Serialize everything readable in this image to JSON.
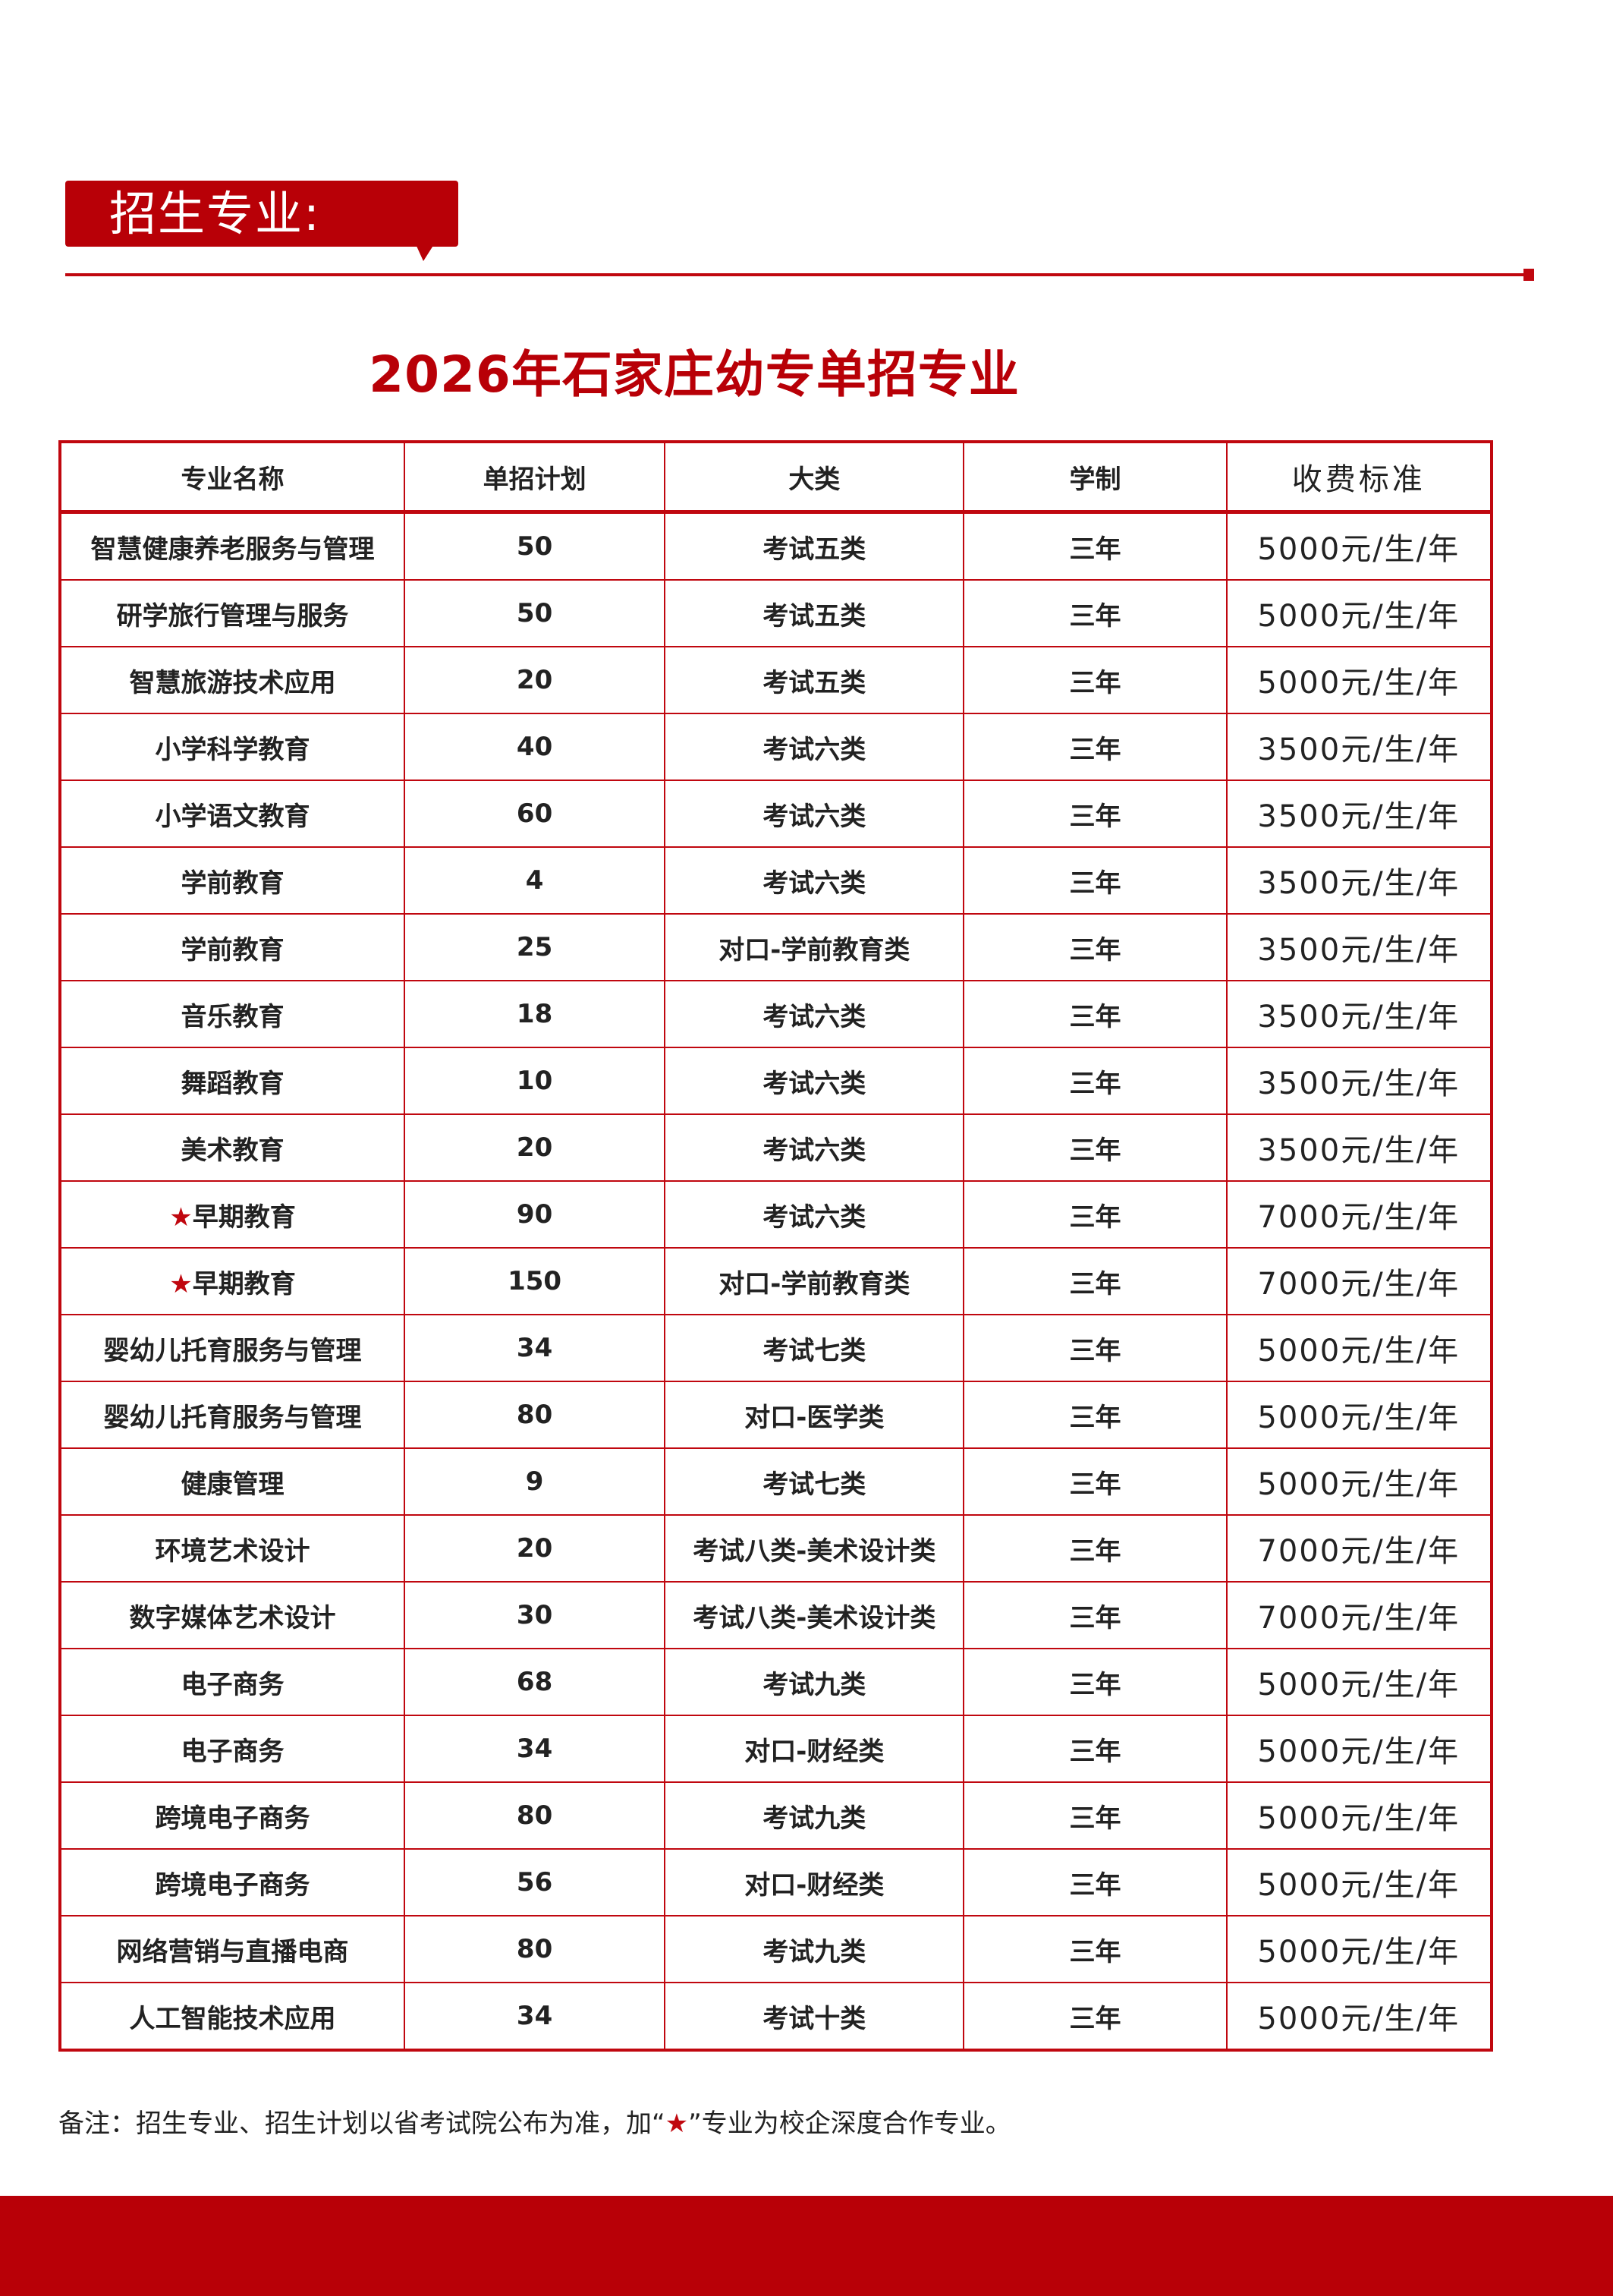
{
  "section_tag": "招生专业:",
  "title": "2026年石家庄幼专单招专业",
  "colors": {
    "accent": "#b80007",
    "border": "#c0070f"
  },
  "table": {
    "headers": [
      "专业名称",
      "单招计划",
      "大类",
      "学制",
      "收费标准"
    ],
    "rows": [
      {
        "name": "智慧健康养老服务与管理",
        "star": false,
        "plan": "50",
        "category": "考试五类",
        "years": "三年",
        "fee": "5000元/生/年"
      },
      {
        "name": "研学旅行管理与服务",
        "star": false,
        "plan": "50",
        "category": "考试五类",
        "years": "三年",
        "fee": "5000元/生/年"
      },
      {
        "name": "智慧旅游技术应用",
        "star": false,
        "plan": "20",
        "category": "考试五类",
        "years": "三年",
        "fee": "5000元/生/年"
      },
      {
        "name": "小学科学教育",
        "star": false,
        "plan": "40",
        "category": "考试六类",
        "years": "三年",
        "fee": "3500元/生/年"
      },
      {
        "name": "小学语文教育",
        "star": false,
        "plan": "60",
        "category": "考试六类",
        "years": "三年",
        "fee": "3500元/生/年"
      },
      {
        "name": "学前教育",
        "star": false,
        "plan": "4",
        "category": "考试六类",
        "years": "三年",
        "fee": "3500元/生/年"
      },
      {
        "name": "学前教育",
        "star": false,
        "plan": "25",
        "category": "对口-学前教育类",
        "years": "三年",
        "fee": "3500元/生/年"
      },
      {
        "name": "音乐教育",
        "star": false,
        "plan": "18",
        "category": "考试六类",
        "years": "三年",
        "fee": "3500元/生/年"
      },
      {
        "name": "舞蹈教育",
        "star": false,
        "plan": "10",
        "category": "考试六类",
        "years": "三年",
        "fee": "3500元/生/年"
      },
      {
        "name": "美术教育",
        "star": false,
        "plan": "20",
        "category": "考试六类",
        "years": "三年",
        "fee": "3500元/生/年"
      },
      {
        "name": "早期教育",
        "star": true,
        "plan": "90",
        "category": "考试六类",
        "years": "三年",
        "fee": "7000元/生/年"
      },
      {
        "name": "早期教育",
        "star": true,
        "plan": "150",
        "category": "对口-学前教育类",
        "years": "三年",
        "fee": "7000元/生/年"
      },
      {
        "name": "婴幼儿托育服务与管理",
        "star": false,
        "plan": "34",
        "category": "考试七类",
        "years": "三年",
        "fee": "5000元/生/年"
      },
      {
        "name": "婴幼儿托育服务与管理",
        "star": false,
        "plan": "80",
        "category": "对口-医学类",
        "years": "三年",
        "fee": "5000元/生/年"
      },
      {
        "name": "健康管理",
        "star": false,
        "plan": "9",
        "category": "考试七类",
        "years": "三年",
        "fee": "5000元/生/年"
      },
      {
        "name": "环境艺术设计",
        "star": false,
        "plan": "20",
        "category": "考试八类-美术设计类",
        "years": "三年",
        "fee": "7000元/生/年"
      },
      {
        "name": "数字媒体艺术设计",
        "star": false,
        "plan": "30",
        "category": "考试八类-美术设计类",
        "years": "三年",
        "fee": "7000元/生/年"
      },
      {
        "name": "电子商务",
        "star": false,
        "plan": "68",
        "category": "考试九类",
        "years": "三年",
        "fee": "5000元/生/年"
      },
      {
        "name": "电子商务",
        "star": false,
        "plan": "34",
        "category": "对口-财经类",
        "years": "三年",
        "fee": "5000元/生/年"
      },
      {
        "name": "跨境电子商务",
        "star": false,
        "plan": "80",
        "category": "考试九类",
        "years": "三年",
        "fee": "5000元/生/年"
      },
      {
        "name": "跨境电子商务",
        "star": false,
        "plan": "56",
        "category": "对口-财经类",
        "years": "三年",
        "fee": "5000元/生/年"
      },
      {
        "name": "网络营销与直播电商",
        "star": false,
        "plan": "80",
        "category": "考试九类",
        "years": "三年",
        "fee": "5000元/生/年"
      },
      {
        "name": "人工智能技术应用",
        "star": false,
        "plan": "34",
        "category": "考试十类",
        "years": "三年",
        "fee": "5000元/生/年"
      }
    ]
  },
  "note": {
    "prefix": "备注：招生专业、招生计划以省考试院公布为准，加“",
    "star": "★",
    "suffix": "”专业为校企深度合作专业。"
  }
}
